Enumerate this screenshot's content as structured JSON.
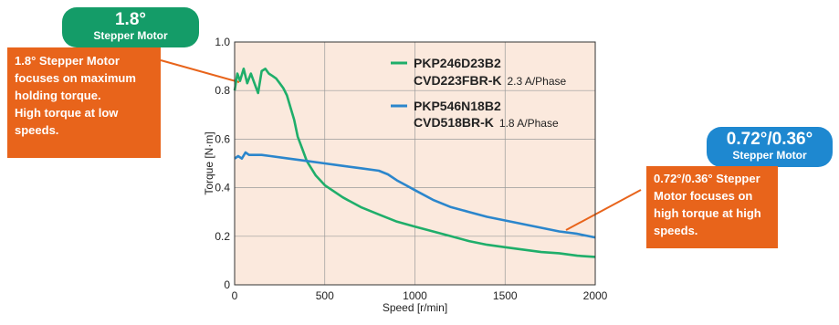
{
  "badges": {
    "left": {
      "angle": "1.8°",
      "kind": "Stepper Motor"
    },
    "right": {
      "angle": "0.72°/0.36°",
      "kind": "Stepper Motor"
    }
  },
  "callouts": {
    "left": [
      "1.8° Stepper Motor",
      "focuses on maximum",
      "holding torque.",
      "High torque at low",
      "speeds."
    ],
    "right": [
      "0.72°/0.36° Stepper",
      "Motor focuses on",
      "high torque at high",
      "speeds."
    ]
  },
  "colors": {
    "plot_bg": "#fbe9dd",
    "green": "#1fae6a",
    "blue": "#2b86cc",
    "callout": "#e8641b",
    "green_badge": "#149c68",
    "blue_badge": "#1e88d0"
  },
  "chart_data": {
    "type": "line",
    "xlabel": "Speed [r/min]",
    "ylabel": "Torque [N·m]",
    "xlim": [
      0,
      2000
    ],
    "ylim": [
      0,
      1.0
    ],
    "xticks": [
      0,
      500,
      1000,
      1500,
      2000
    ],
    "yticks": [
      0,
      0.2,
      0.4,
      0.6,
      0.8,
      1.0
    ],
    "ytick_labels": [
      "0",
      "0.2",
      "0.4",
      "0.6",
      "0.8",
      "1.0"
    ],
    "grid": true,
    "legend_position": "top-right",
    "series": [
      {
        "name": "PKP246D23B2",
        "driver": "CVD223FBR-K",
        "current": "2.3 A/Phase",
        "color": "#1fae6a",
        "x": [
          0,
          15,
          30,
          50,
          70,
          90,
          110,
          130,
          150,
          170,
          190,
          210,
          230,
          250,
          270,
          290,
          310,
          330,
          350,
          375,
          400,
          450,
          500,
          600,
          700,
          800,
          900,
          1000,
          1100,
          1200,
          1300,
          1400,
          1500,
          1600,
          1700,
          1800,
          1900,
          2000
        ],
        "y": [
          0.8,
          0.87,
          0.84,
          0.89,
          0.83,
          0.87,
          0.83,
          0.79,
          0.88,
          0.89,
          0.87,
          0.86,
          0.85,
          0.83,
          0.81,
          0.78,
          0.73,
          0.68,
          0.61,
          0.56,
          0.51,
          0.45,
          0.41,
          0.36,
          0.32,
          0.29,
          0.26,
          0.24,
          0.22,
          0.2,
          0.18,
          0.165,
          0.155,
          0.145,
          0.135,
          0.13,
          0.12,
          0.115
        ]
      },
      {
        "name": "PKP546N18B2",
        "driver": "CVD518BR-K",
        "current": "1.8 A/Phase",
        "color": "#2b86cc",
        "x": [
          0,
          20,
          40,
          60,
          80,
          100,
          150,
          200,
          300,
          400,
          500,
          600,
          700,
          800,
          850,
          900,
          950,
          1000,
          1100,
          1200,
          1300,
          1400,
          1500,
          1600,
          1700,
          1800,
          1900,
          2000
        ],
        "y": [
          0.52,
          0.53,
          0.52,
          0.545,
          0.535,
          0.535,
          0.535,
          0.53,
          0.52,
          0.51,
          0.5,
          0.49,
          0.48,
          0.47,
          0.455,
          0.43,
          0.41,
          0.39,
          0.35,
          0.32,
          0.3,
          0.28,
          0.265,
          0.25,
          0.235,
          0.22,
          0.21,
          0.195
        ]
      }
    ]
  }
}
